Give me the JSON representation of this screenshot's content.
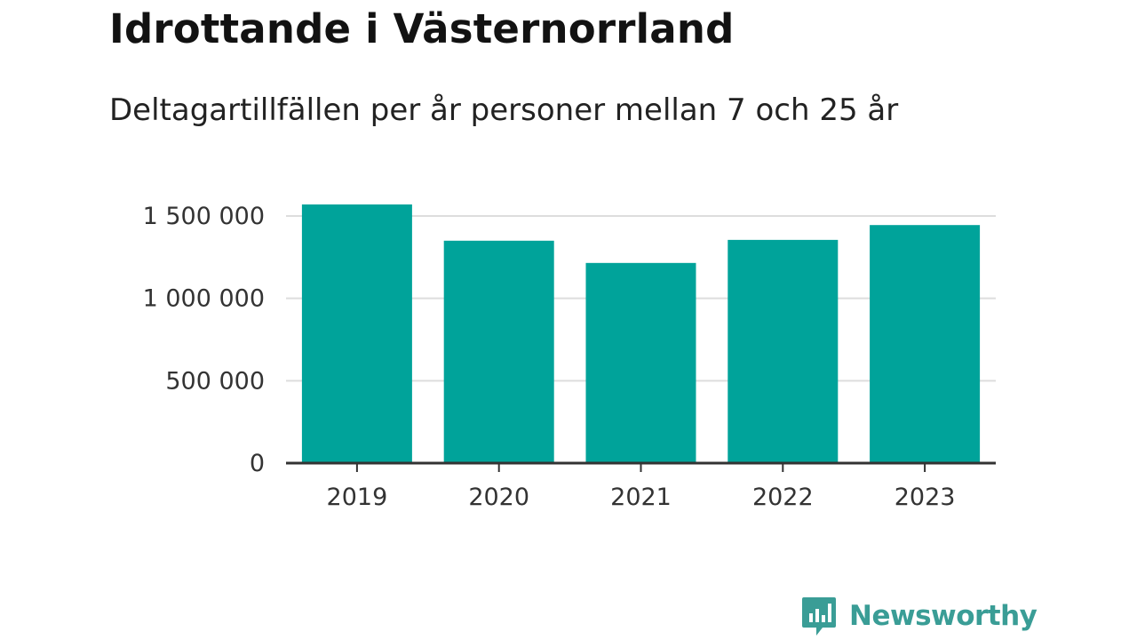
{
  "title": "Idrottande i Västernorrland",
  "subtitle": "Deltagartillfällen per år personer mellan 7 och 25 år",
  "logo_text": "Newsworthy",
  "colors": {
    "bar": "#00a39a",
    "grid": "#dddddd",
    "axis": "#333333",
    "logo": "#3a9d96"
  },
  "chart_data": {
    "type": "bar",
    "categories": [
      "2019",
      "2020",
      "2021",
      "2022",
      "2023"
    ],
    "values": [
      1570000,
      1350000,
      1215000,
      1355000,
      1445000
    ],
    "ylim": [
      0,
      1500000
    ],
    "yticks": [
      0,
      500000,
      1000000,
      1500000
    ],
    "ytick_labels": [
      "0",
      "500 000",
      "1 000 000",
      "1 500 000"
    ],
    "grid": true
  }
}
